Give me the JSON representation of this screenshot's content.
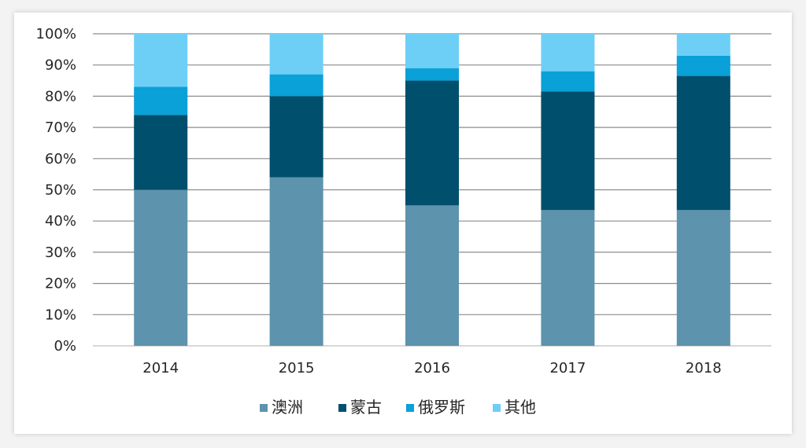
{
  "chart_data": {
    "type": "bar",
    "stacked": true,
    "categories": [
      "2014",
      "2015",
      "2016",
      "2017",
      "2018"
    ],
    "series": [
      {
        "name": "澳洲",
        "color": "#5d93ad",
        "values": [
          50,
          54,
          45,
          43.5,
          43.5
        ]
      },
      {
        "name": "蒙古",
        "color": "#004f6c",
        "values": [
          24,
          26,
          40,
          38,
          43
        ]
      },
      {
        "name": "俄罗斯",
        "color": "#0aa0d8",
        "values": [
          9,
          7,
          4,
          6.5,
          6.5
        ]
      },
      {
        "name": "其他",
        "color": "#6dcff6",
        "values": [
          17,
          13,
          11,
          12,
          7
        ]
      }
    ],
    "y_ticks": [
      "0%",
      "10%",
      "20%",
      "30%",
      "40%",
      "50%",
      "60%",
      "70%",
      "80%",
      "90%",
      "100%"
    ],
    "ylim": [
      0,
      100
    ],
    "grid": true,
    "legend_position": "bottom"
  }
}
